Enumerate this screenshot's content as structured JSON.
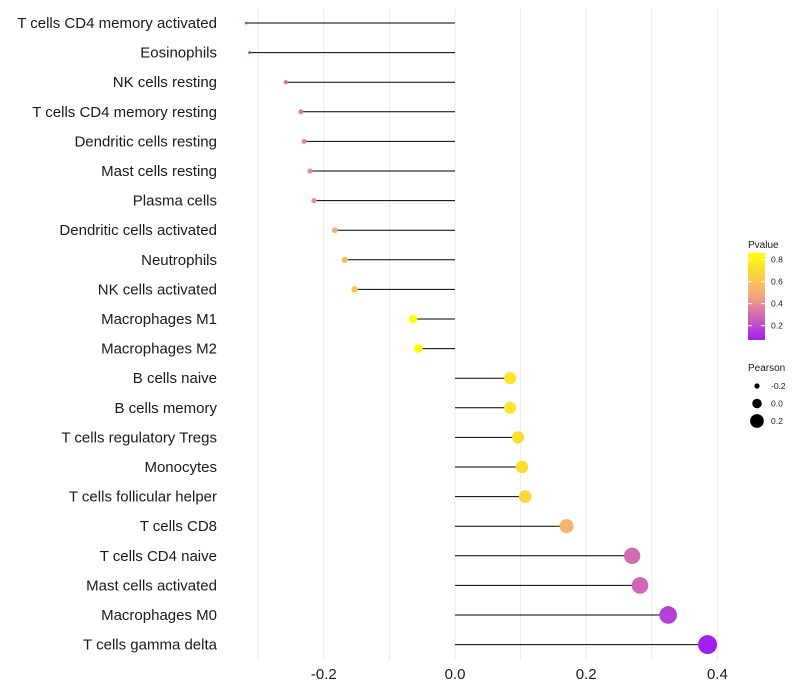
{
  "chart_data": {
    "type": "lollipop",
    "xlim": [
      -0.3,
      0.4
    ],
    "x_ticks": [
      -0.2,
      0.0,
      0.2,
      0.4
    ],
    "x_tick_labels": [
      "-0.2",
      "0.0",
      "0.2",
      "0.4"
    ],
    "grid": true,
    "legend_placement": "right",
    "categories": [
      "T cells CD4 memory activated",
      "Eosinophils",
      "NK cells resting",
      "T cells CD4 memory resting",
      "Dendritic cells resting",
      "Mast cells resting",
      "Plasma cells",
      "Dendritic cells activated",
      "Neutrophils",
      "NK cells activated",
      "Macrophages M1",
      "Macrophages M2",
      "B cells naive",
      "B cells memory",
      "T cells regulatory  Tregs",
      "Monocytes",
      "T cells follicular helper",
      "T cells CD8",
      "T cells CD4 naive",
      "Mast cells activated",
      "Macrophages M0",
      "T cells gamma delta"
    ],
    "pearson": [
      -0.318,
      -0.313,
      -0.258,
      -0.235,
      -0.23,
      -0.221,
      -0.215,
      -0.183,
      -0.168,
      -0.153,
      -0.064,
      -0.056,
      0.084,
      0.084,
      0.096,
      0.102,
      0.107,
      0.17,
      0.27,
      0.282,
      0.325,
      0.385
    ],
    "pvalue": [
      0.13,
      0.15,
      0.32,
      0.33,
      0.36,
      0.38,
      0.39,
      0.51,
      0.55,
      0.61,
      0.85,
      0.86,
      0.74,
      0.74,
      0.71,
      0.71,
      0.69,
      0.53,
      0.3,
      0.28,
      0.17,
      0.07
    ],
    "legend_pvalue": {
      "title": "Pvalue",
      "ticks": [
        0.8,
        0.6,
        0.4,
        0.2
      ],
      "tick_labels": [
        "0.8",
        "0.6",
        "0.4",
        "0.2"
      ],
      "range": [
        0.07,
        0.86
      ],
      "colors": {
        "low": "#a020f0",
        "mid": "#f4a582",
        "high": "#ffff00"
      }
    },
    "legend_pearson": {
      "title": "Pearson",
      "values": [
        -0.2,
        0.0,
        0.2
      ],
      "labels": [
        "-0.2",
        "0.0",
        "0.2"
      ]
    },
    "colors": {
      "stem": "#000000",
      "grid": "#ebebeb",
      "text": "#1a1a1a"
    }
  }
}
